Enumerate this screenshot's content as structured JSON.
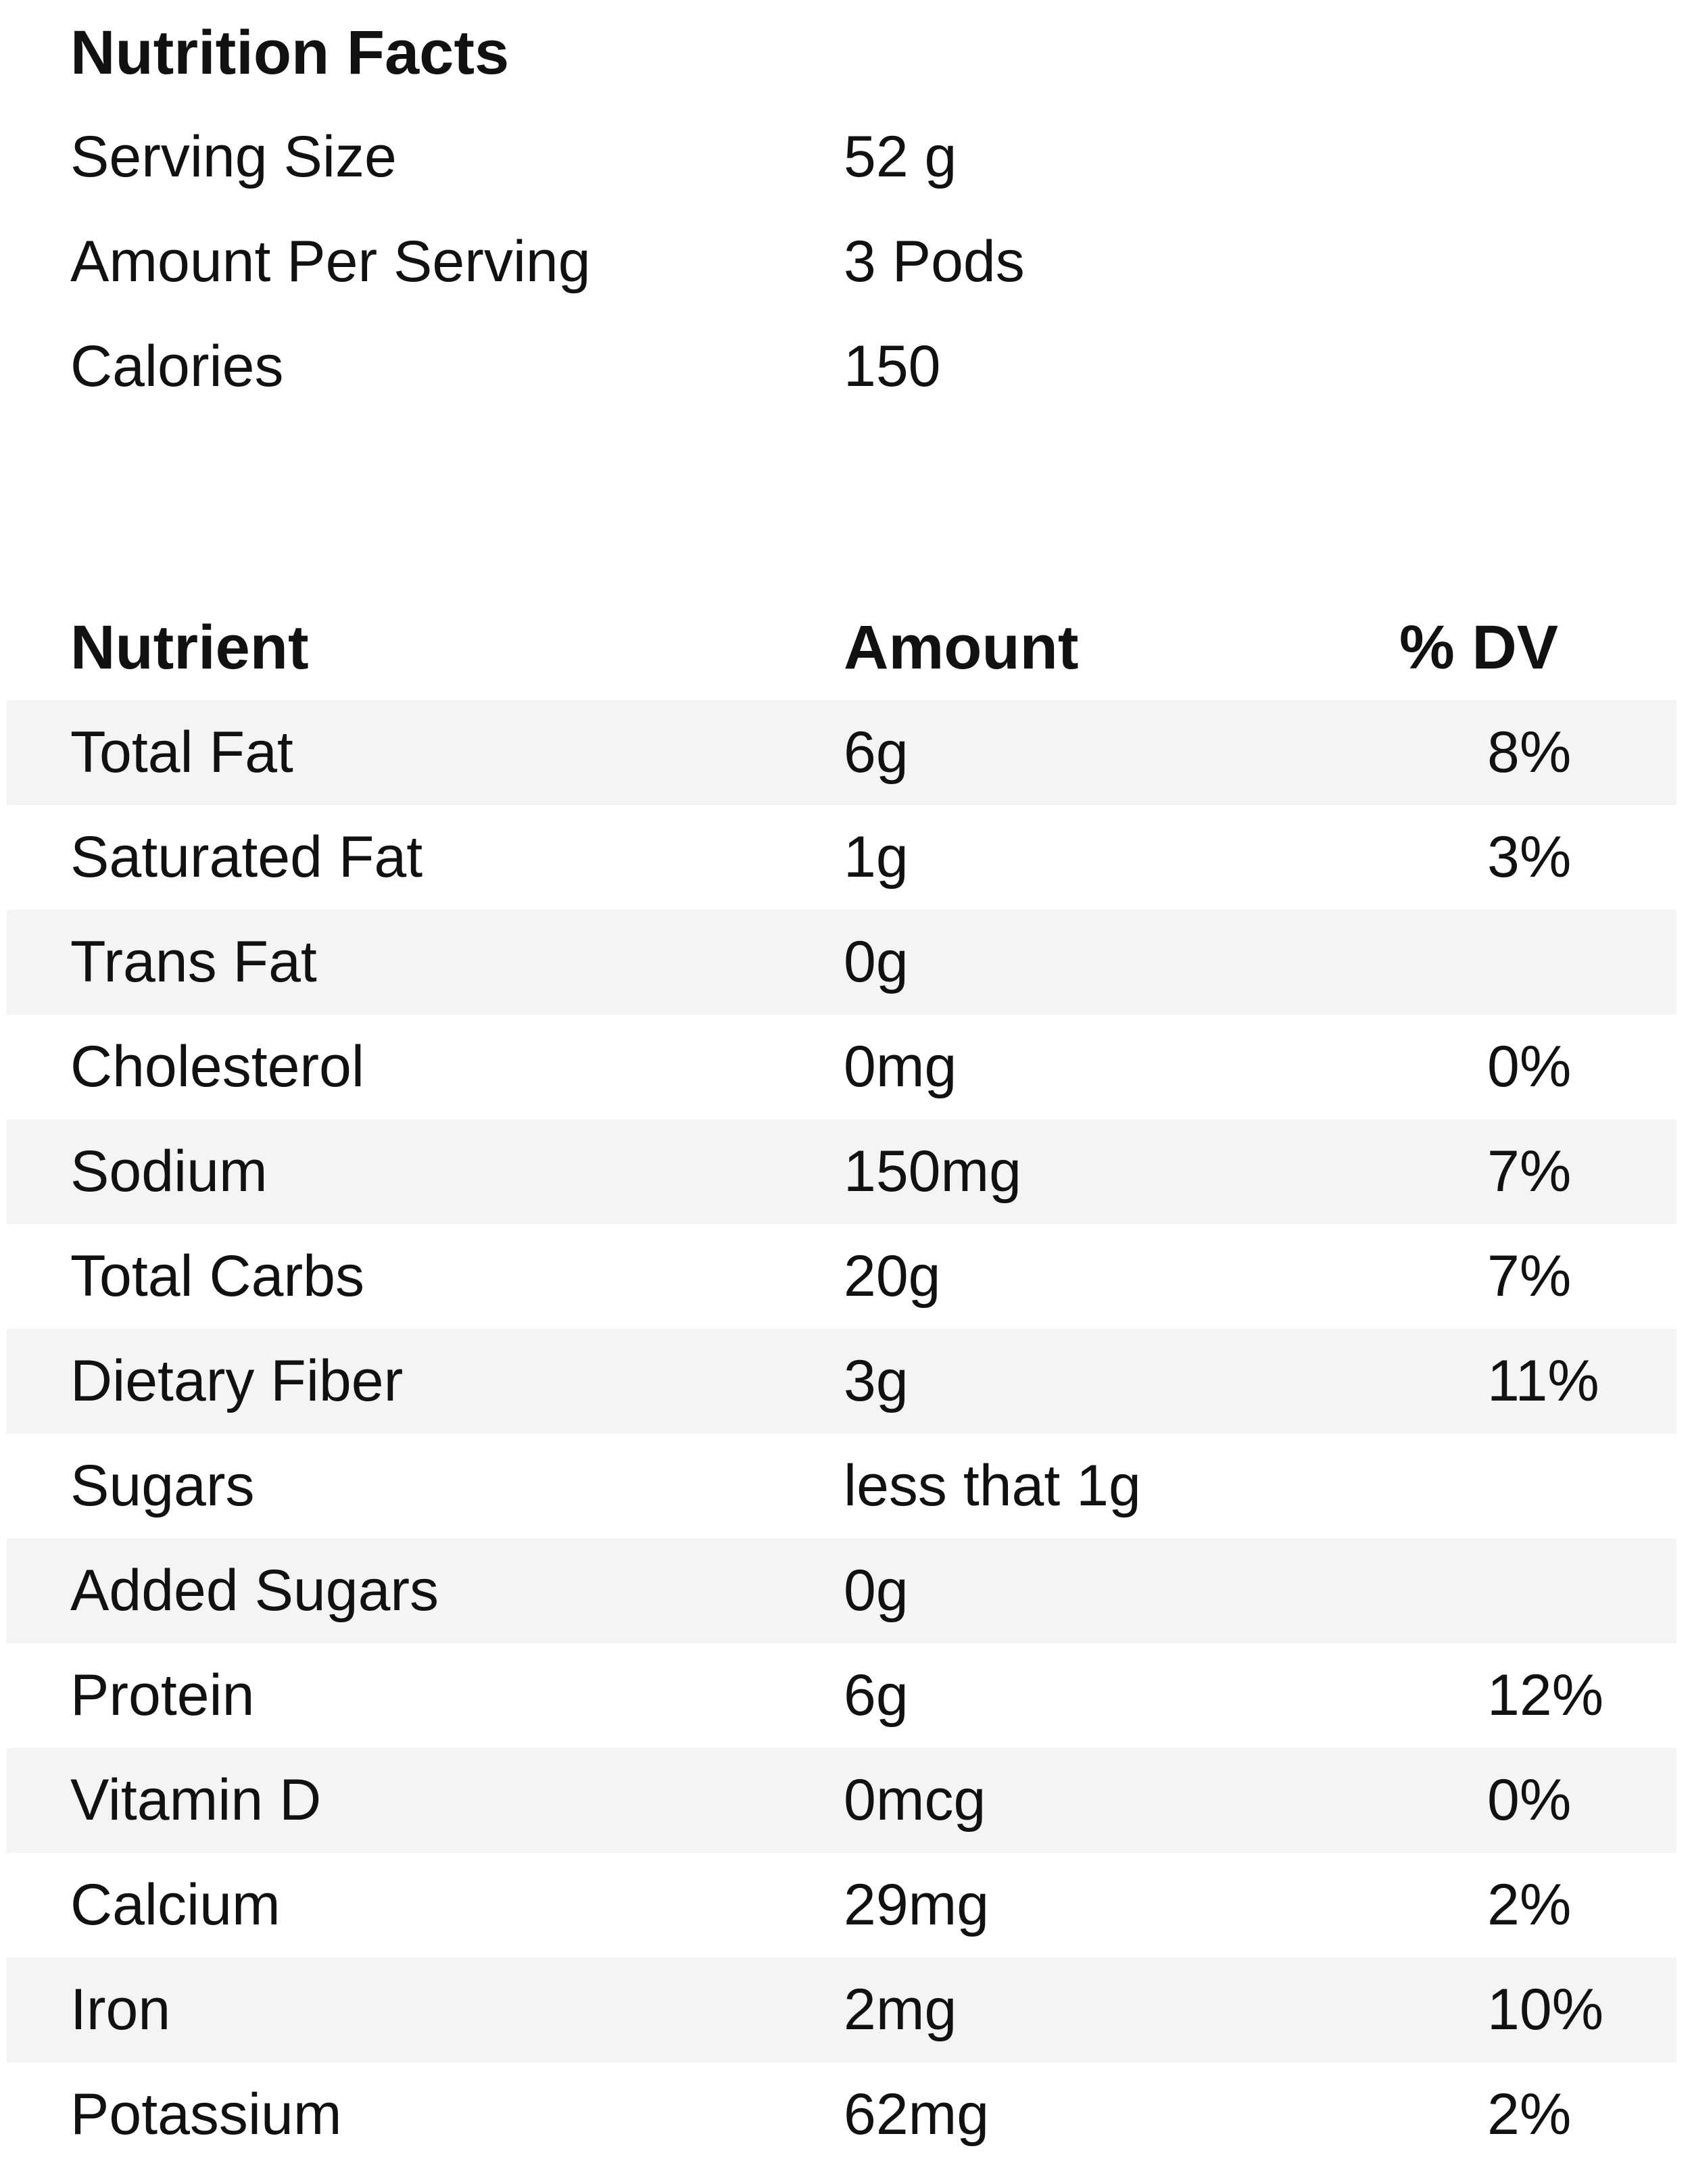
{
  "title": "Nutrition Facts",
  "info": [
    {
      "label": "Serving Size",
      "value": "52 g"
    },
    {
      "label": "Amount Per Serving",
      "value": "3 Pods"
    },
    {
      "label": "Calories",
      "value": "150"
    }
  ],
  "table": {
    "headers": {
      "nutrient": "Nutrient",
      "amount": "Amount",
      "dv": "% DV"
    },
    "rows": [
      {
        "name": "Total Fat",
        "amount": "6g",
        "dv": "8%"
      },
      {
        "name": "Saturated Fat",
        "amount": "1g",
        "dv": "3%"
      },
      {
        "name": "Trans Fat",
        "amount": "0g",
        "dv": ""
      },
      {
        "name": "Cholesterol",
        "amount": "0mg",
        "dv": "0%"
      },
      {
        "name": "Sodium",
        "amount": "150mg",
        "dv": "7%"
      },
      {
        "name": "Total Carbs",
        "amount": "20g",
        "dv": "7%"
      },
      {
        "name": "Dietary Fiber",
        "amount": "3g",
        "dv": "11%"
      },
      {
        "name": "Sugars",
        "amount": "less that 1g",
        "dv": ""
      },
      {
        "name": "Added Sugars",
        "amount": "0g",
        "dv": ""
      },
      {
        "name": "Protein",
        "amount": "6g",
        "dv": "12%"
      },
      {
        "name": "Vitamin D",
        "amount": "0mcg",
        "dv": "0%"
      },
      {
        "name": "Calcium",
        "amount": "29mg",
        "dv": "2%"
      },
      {
        "name": "Iron",
        "amount": "2mg",
        "dv": "10%"
      },
      {
        "name": "Potassium",
        "amount": "62mg",
        "dv": "2%"
      }
    ]
  },
  "colors": {
    "row_shade": "#f3f4f6",
    "text": "#111111"
  }
}
